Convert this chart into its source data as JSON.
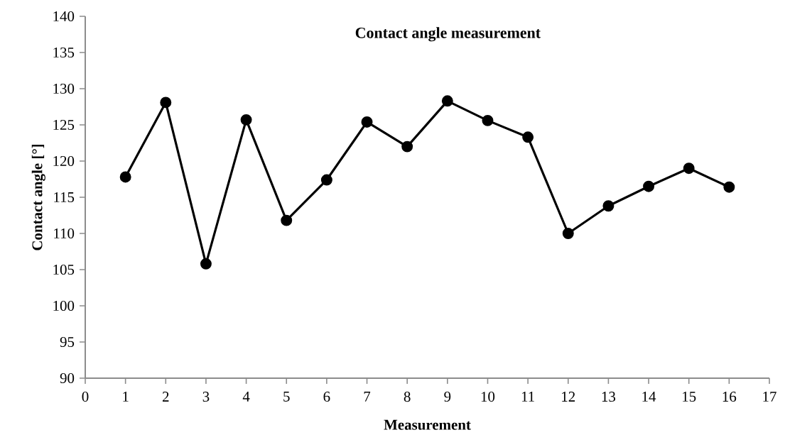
{
  "chart_data": {
    "type": "line",
    "title": "Contact angle measurement",
    "xlabel": "Measurement",
    "ylabel": "Contact angle [°]",
    "x": [
      1,
      2,
      3,
      4,
      5,
      6,
      7,
      8,
      9,
      10,
      11,
      12,
      13,
      14,
      15,
      16
    ],
    "series": [
      {
        "color": "#000000",
        "values": [
          117.8,
          128.1,
          105.8,
          125.7,
          111.8,
          117.4,
          125.4,
          122.0,
          128.3,
          125.6,
          123.3,
          110.0,
          113.8,
          116.5,
          119.0,
          116.4
        ]
      }
    ],
    "xlim": [
      0,
      17
    ],
    "xticks": [
      0,
      1,
      2,
      3,
      4,
      5,
      6,
      7,
      8,
      9,
      10,
      11,
      12,
      13,
      14,
      15,
      16,
      17
    ],
    "ylim": [
      90,
      140
    ],
    "yticks": [
      90,
      95,
      100,
      105,
      110,
      115,
      120,
      125,
      130,
      135,
      140
    ],
    "grid": false,
    "marker": "circle",
    "line_style": "solid"
  }
}
